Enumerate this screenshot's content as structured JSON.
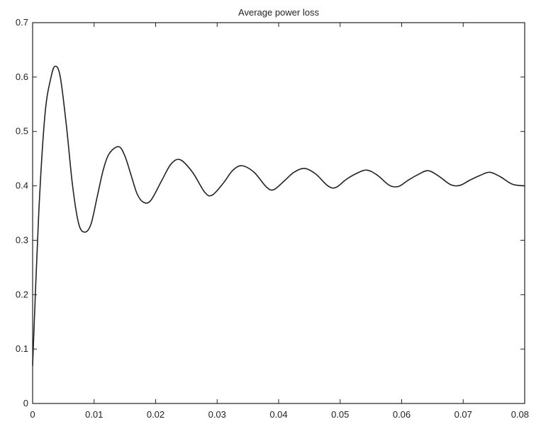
{
  "chart_data": {
    "type": "line",
    "title": "Average power loss",
    "xlabel": "",
    "ylabel": "",
    "xlim": [
      0,
      0.08
    ],
    "ylim": [
      0,
      0.7
    ],
    "grid": false,
    "x_ticks": [
      0,
      0.01,
      0.02,
      0.03,
      0.04,
      0.05,
      0.06,
      0.07,
      0.08
    ],
    "x_tick_labels": [
      "0",
      "0.01",
      "0.02",
      "0.03",
      "0.04",
      "0.05",
      "0.06",
      "0.07",
      "0.08"
    ],
    "y_ticks": [
      0,
      0.1,
      0.2,
      0.3,
      0.4,
      0.5,
      0.6,
      0.7
    ],
    "y_tick_labels": [
      "0",
      "0.1",
      "0.2",
      "0.3",
      "0.4",
      "0.5",
      "0.6",
      "0.7"
    ],
    "series": [
      {
        "color": "#222222",
        "x": [
          0,
          0.001,
          0.002,
          0.003,
          0.0037,
          0.0045,
          0.0055,
          0.0065,
          0.0075,
          0.0085,
          0.0095,
          0.0105,
          0.0115,
          0.0125,
          0.014,
          0.015,
          0.016,
          0.017,
          0.018,
          0.0192,
          0.021,
          0.0225,
          0.024,
          0.026,
          0.028,
          0.0292,
          0.031,
          0.0325,
          0.034,
          0.036,
          0.038,
          0.0392,
          0.041,
          0.0425,
          0.0442,
          0.046,
          0.048,
          0.0493,
          0.051,
          0.0527,
          0.0543,
          0.056,
          0.058,
          0.0595,
          0.061,
          0.0627,
          0.0643,
          0.066,
          0.068,
          0.0695,
          0.071,
          0.0727,
          0.0743,
          0.076,
          0.078,
          0.08
        ],
        "y": [
          0.07,
          0.35,
          0.53,
          0.6,
          0.62,
          0.6,
          0.51,
          0.4,
          0.33,
          0.315,
          0.33,
          0.38,
          0.43,
          0.46,
          0.472,
          0.455,
          0.42,
          0.385,
          0.37,
          0.373,
          0.41,
          0.44,
          0.448,
          0.425,
          0.388,
          0.383,
          0.405,
          0.428,
          0.437,
          0.425,
          0.398,
          0.393,
          0.41,
          0.425,
          0.432,
          0.422,
          0.4,
          0.397,
          0.412,
          0.423,
          0.429,
          0.42,
          0.401,
          0.399,
          0.41,
          0.421,
          0.428,
          0.418,
          0.402,
          0.401,
          0.41,
          0.419,
          0.425,
          0.417,
          0.403,
          0.4
        ]
      }
    ]
  }
}
